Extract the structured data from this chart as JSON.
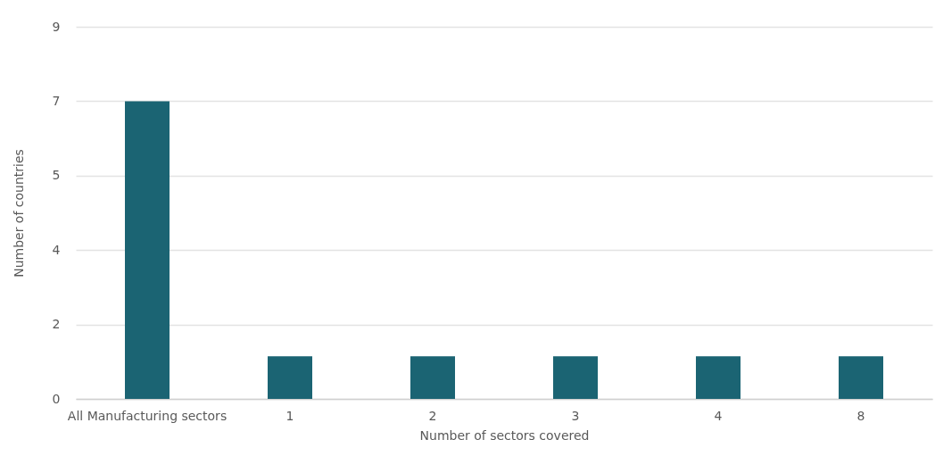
{
  "chart_data": {
    "type": "bar",
    "xlabel": "Number of sectors covered",
    "ylabel": "Number of countries",
    "categories": [
      "All Manufacturing sectors",
      "1",
      "2",
      "3",
      "4",
      "8"
    ],
    "series": [
      {
        "color": "#1b6473",
        "values": [
          7,
          1,
          1,
          1,
          1,
          1
        ]
      }
    ],
    "ylim": [
      0,
      8.75
    ],
    "yticks": [
      0,
      {
        "value": 1.75,
        "label": "2"
      },
      {
        "value": 3.5,
        "label": "4"
      },
      {
        "value": 5.25,
        "label": "5"
      },
      7,
      {
        "value": 8.75,
        "label": "9"
      }
    ],
    "grid": "y"
  }
}
